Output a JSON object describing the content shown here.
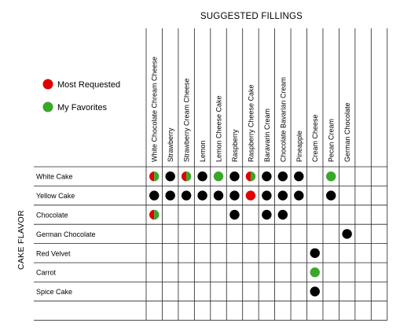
{
  "chart_data": {
    "type": "table",
    "title": "SUGGESTED FILLINGS",
    "ylabel": "CAKE FLAVOR",
    "legend": [
      {
        "key": "requested",
        "label": "Most Requested",
        "color": "#e00000"
      },
      {
        "key": "favorite",
        "label": "My Favorites",
        "color": "#3aa62a"
      }
    ],
    "columns": [
      "White Chocolate Chream Cheese",
      "Strawberry",
      "Strawberry Cream Cheese",
      "Lemon",
      "Lemon Cheese Cake",
      "Raspberry",
      "Raspberry Cheese Cake",
      "Baravarin Cream",
      "Chocolate Bavarian Cream",
      "Pineapple",
      "Cream Cheese",
      "Pecan Cream",
      "German Chocolate",
      "",
      ""
    ],
    "rows": [
      {
        "label": "White Cake",
        "cells": [
          "both",
          "yes",
          "both",
          "yes",
          "fav",
          "yes",
          "both",
          "yes",
          "yes",
          "yes",
          "",
          "fav",
          "",
          "",
          ""
        ]
      },
      {
        "label": "Yellow Cake",
        "cells": [
          "yes",
          "yes",
          "yes",
          "yes",
          "yes",
          "yes",
          "req",
          "yes",
          "yes",
          "yes",
          "",
          "yes",
          "",
          "",
          ""
        ]
      },
      {
        "label": "Chocolate",
        "cells": [
          "both",
          "",
          "",
          "",
          "",
          "yes",
          "",
          "yes",
          "yes",
          "",
          "",
          "",
          "",
          "",
          ""
        ]
      },
      {
        "label": "German Chocolate",
        "cells": [
          "",
          "",
          "",
          "",
          "",
          "",
          "",
          "",
          "",
          "",
          "",
          "",
          "yes",
          "",
          ""
        ]
      },
      {
        "label": "Red Velvet",
        "cells": [
          "",
          "",
          "",
          "",
          "",
          "",
          "",
          "",
          "",
          "",
          "yes",
          "",
          "",
          "",
          ""
        ]
      },
      {
        "label": "Carrot",
        "cells": [
          "",
          "",
          "",
          "",
          "",
          "",
          "",
          "",
          "",
          "",
          "fav",
          "",
          "",
          "",
          ""
        ]
      },
      {
        "label": "Spice Cake",
        "cells": [
          "",
          "",
          "",
          "",
          "",
          "",
          "",
          "",
          "",
          "",
          "yes",
          "",
          "",
          "",
          ""
        ]
      },
      {
        "label": "",
        "cells": [
          "",
          "",
          "",
          "",
          "",
          "",
          "",
          "",
          "",
          "",
          "",
          "",
          "",
          "",
          ""
        ]
      }
    ],
    "colors": {
      "yes": "#000000",
      "requested": "#e00000",
      "favorite": "#3aa62a",
      "grid": "#222222"
    }
  }
}
